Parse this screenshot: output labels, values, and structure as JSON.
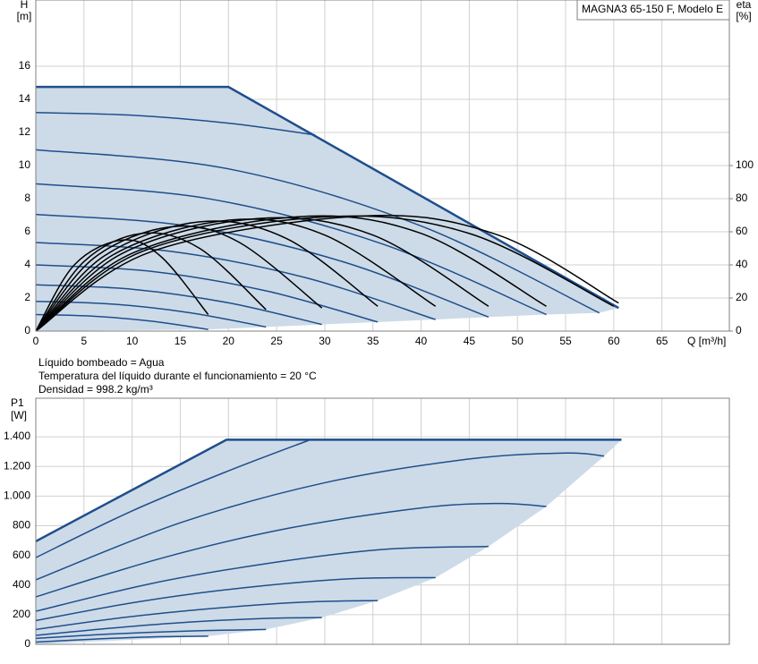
{
  "chart_data": [
    {
      "type": "line",
      "title": "MAGNA3 65-150 F, Modelo E",
      "ylabel": [
        "H",
        "[m]"
      ],
      "y2label": [
        "eta",
        "[%]"
      ],
      "xlabel": "Q [m³/h]",
      "annotations": [
        "Líquido bombeado = Agua",
        "Temperatura del líquido durante el funcionamiento = 20 °C",
        "Densidad = 998.2 kg/m³"
      ],
      "xlim": [
        0,
        72
      ],
      "xticks": [
        0,
        5,
        10,
        15,
        20,
        25,
        30,
        35,
        40,
        45,
        50,
        55,
        60,
        65
      ],
      "ylim": [
        0,
        20
      ],
      "yticks": [
        0,
        2,
        4,
        6,
        8,
        10,
        12,
        14,
        16
      ],
      "y2lim": [
        0,
        200
      ],
      "y2ticks": [
        0,
        20,
        40,
        60,
        80,
        100
      ],
      "grid": true,
      "area": {
        "color": "#cddbe8",
        "x": [
          0,
          0,
          20,
          60.5,
          58.5,
          53,
          47,
          41.5,
          35.5,
          29.7,
          23.9,
          17.9,
          0
        ],
        "values": [
          0,
          14.75,
          14.75,
          1.4,
          1.1,
          1.0,
          0.85,
          0.7,
          0.55,
          0.4,
          0.25,
          0.1,
          0
        ]
      },
      "series": [
        {
          "color": "#1f4e8c",
          "width": 2.5,
          "interpolation": "linear",
          "x": [
            0,
            20,
            60.5
          ],
          "values": [
            14.75,
            14.75,
            1.4
          ]
        },
        {
          "color": "#1f4e8c",
          "x": [
            0,
            10,
            20,
            29
          ],
          "values": [
            13.2,
            13.04,
            12.56,
            11.85
          ]
        },
        {
          "color": "#1f4e8c",
          "x": [
            0,
            20,
            40,
            58.5
          ],
          "values": [
            10.95,
            9.8,
            6.35,
            1.1
          ]
        },
        {
          "color": "#1f4e8c",
          "x": [
            0,
            18,
            36,
            53
          ],
          "values": [
            8.9,
            7.99,
            5.26,
            1.0
          ]
        },
        {
          "color": "#1f4e8c",
          "x": [
            0,
            16,
            32,
            47
          ],
          "values": [
            7.05,
            6.33,
            4.17,
            0.85
          ]
        },
        {
          "color": "#1f4e8c",
          "x": [
            0,
            14,
            28,
            41.5
          ],
          "values": [
            5.35,
            4.82,
            3.23,
            0.7
          ]
        },
        {
          "color": "#1f4e8c",
          "x": [
            0,
            12,
            24,
            35.5
          ],
          "values": [
            4.0,
            3.61,
            2.42,
            0.55
          ]
        },
        {
          "color": "#1f4e8c",
          "x": [
            0,
            10,
            20,
            29.7
          ],
          "values": [
            2.8,
            2.53,
            1.71,
            0.4
          ]
        },
        {
          "color": "#1f4e8c",
          "x": [
            0,
            8,
            16,
            23.9
          ],
          "values": [
            1.8,
            1.63,
            1.11,
            0.25
          ]
        },
        {
          "color": "#1f4e8c",
          "x": [
            0,
            6,
            12,
            17.9
          ],
          "values": [
            1.0,
            0.9,
            0.6,
            0.1
          ]
        },
        {
          "color": "#000000",
          "axis": "y2",
          "x": [
            0,
            4,
            9,
            13,
            17.9
          ],
          "values": [
            0,
            40,
            55,
            45,
            10
          ]
        },
        {
          "color": "#000000",
          "axis": "y2",
          "x": [
            0,
            5,
            11,
            17,
            23.9
          ],
          "values": [
            0,
            42,
            59,
            50,
            13
          ]
        },
        {
          "color": "#000000",
          "axis": "y2",
          "x": [
            0,
            6,
            14,
            21,
            29.7
          ],
          "values": [
            0,
            44,
            63,
            54,
            14
          ]
        },
        {
          "color": "#000000",
          "axis": "y2",
          "x": [
            0,
            7,
            17,
            26,
            35.5
          ],
          "values": [
            0,
            45,
            66,
            56,
            15
          ]
        },
        {
          "color": "#000000",
          "axis": "y2",
          "x": [
            0,
            8,
            20,
            30,
            41.5
          ],
          "values": [
            0,
            46,
            67,
            58,
            15
          ]
        },
        {
          "color": "#000000",
          "axis": "y2",
          "x": [
            0,
            9,
            23,
            35,
            47
          ],
          "values": [
            0,
            47,
            68,
            58,
            15
          ]
        },
        {
          "color": "#000000",
          "axis": "y2",
          "x": [
            0,
            10,
            27,
            40,
            53
          ],
          "values": [
            0,
            47,
            69,
            59,
            15
          ]
        },
        {
          "color": "#000000",
          "axis": "y2",
          "x": [
            0,
            11,
            30,
            45,
            60
          ],
          "values": [
            0,
            48,
            69,
            59,
            15
          ]
        },
        {
          "color": "#000000",
          "axis": "y2",
          "x": [
            0,
            12,
            34,
            48,
            60.5
          ],
          "values": [
            0,
            48,
            69.5,
            58,
            17
          ]
        }
      ]
    },
    {
      "type": "line",
      "ylabel": [
        "P1",
        "[W]"
      ],
      "xlim": [
        0,
        72
      ],
      "xticks": [
        0,
        5,
        10,
        15,
        20,
        25,
        30,
        35,
        40,
        45,
        50,
        55,
        60,
        65
      ],
      "ylim": [
        0,
        1660
      ],
      "yticks": [
        0,
        200,
        400,
        600,
        800,
        {
          "value": 1000,
          "label": "1.000"
        },
        {
          "value": 1200,
          "label": "1.200"
        },
        {
          "value": 1400,
          "label": "1.400"
        }
      ],
      "grid": true,
      "area": {
        "color": "#cddbe8",
        "x": [
          0,
          0,
          19.8,
          60.8,
          59,
          53,
          47,
          41.5,
          35.5,
          29.7,
          23.9,
          17.9,
          0
        ],
        "values": [
          0,
          695,
          1380,
          1380,
          1270,
          930,
          660,
          450,
          295,
          180,
          100,
          55,
          0
        ]
      },
      "series": [
        {
          "color": "#1f4e8c",
          "width": 2.5,
          "interpolation": "linear",
          "x": [
            0,
            19.8,
            60.8
          ],
          "values": [
            695,
            1380,
            1380
          ]
        },
        {
          "color": "#1f4e8c",
          "x": [
            0,
            10,
            20,
            28.5
          ],
          "values": [
            585,
            900,
            1170,
            1380
          ]
        },
        {
          "color": "#1f4e8c",
          "x": [
            0,
            15,
            30,
            45,
            55,
            59
          ],
          "values": [
            435,
            820,
            1090,
            1250,
            1290,
            1270
          ]
        },
        {
          "color": "#1f4e8c",
          "x": [
            0,
            13,
            26,
            40,
            48,
            53
          ],
          "values": [
            320,
            580,
            780,
            920,
            950,
            930
          ]
        },
        {
          "color": "#1f4e8c",
          "x": [
            0,
            12,
            24,
            36,
            47
          ],
          "values": [
            223,
            410,
            545,
            640,
            660
          ]
        },
        {
          "color": "#1f4e8c",
          "x": [
            0,
            10,
            20,
            32,
            41.5
          ],
          "values": [
            160,
            280,
            370,
            440,
            450
          ]
        },
        {
          "color": "#1f4e8c",
          "x": [
            0,
            9,
            18,
            28,
            35.5
          ],
          "values": [
            100,
            180,
            240,
            285,
            295
          ]
        },
        {
          "color": "#1f4e8c",
          "x": [
            0,
            8,
            16,
            24,
            29.7
          ],
          "values": [
            60,
            110,
            150,
            175,
            180
          ]
        },
        {
          "color": "#1f4e8c",
          "x": [
            0,
            8,
            16,
            23.9
          ],
          "values": [
            40,
            70,
            90,
            100
          ]
        },
        {
          "color": "#1f4e8c",
          "x": [
            0,
            6,
            12,
            17.9
          ],
          "values": [
            15,
            35,
            50,
            55
          ]
        }
      ]
    }
  ]
}
